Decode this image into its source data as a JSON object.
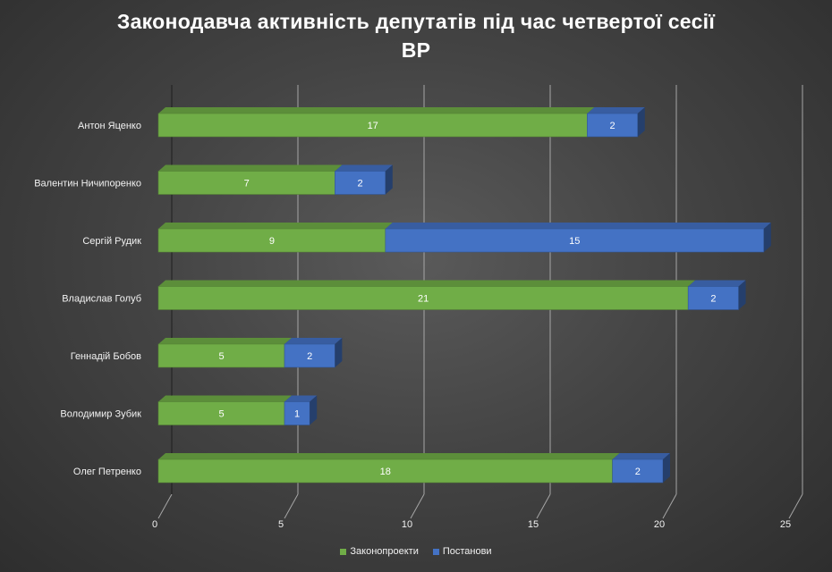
{
  "chart_data": {
    "type": "bar",
    "orientation": "horizontal",
    "stacked": true,
    "title_line1": "Законодавча активність депутатів під час четвертої сесії",
    "title_line2": "ВР",
    "categories": [
      "Антон Яценко",
      "Валентин Ничипоренко",
      "Сергій Рудик",
      "Владислав Голуб",
      "Геннадій Бобов",
      "Володимир Зубик",
      "Олег Петренко"
    ],
    "series": [
      {
        "name": "Законопроекти",
        "color": "#70ad47",
        "values": [
          17,
          7,
          9,
          21,
          5,
          5,
          18
        ]
      },
      {
        "name": "Постанови",
        "color": "#4472c4",
        "values": [
          2,
          2,
          15,
          2,
          2,
          1,
          2
        ]
      }
    ],
    "xlim": [
      0,
      25
    ],
    "x_ticks": [
      "0",
      "5",
      "10",
      "15",
      "20",
      "25"
    ],
    "grid": true,
    "legend_position": "bottom",
    "data_labels": true
  }
}
